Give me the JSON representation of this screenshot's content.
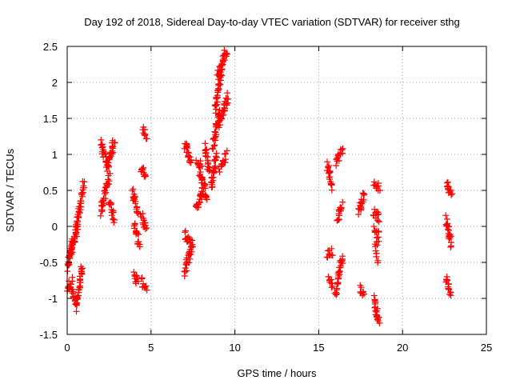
{
  "chart_data": {
    "type": "scatter",
    "title": "Day 192 of 2018, Sidereal Day-to-day VTEC variation (SDTVAR) for receiver sthg",
    "xlabel": "GPS time / hours",
    "ylabel": "SDTVAR / TECUs",
    "xlim": [
      0,
      25
    ],
    "ylim": [
      -1.5,
      2.5
    ],
    "xticks": [
      0,
      5,
      10,
      15,
      20,
      25
    ],
    "yticks": [
      -1.5,
      -1,
      -0.5,
      0,
      0.5,
      1,
      1.5,
      2,
      2.5
    ],
    "xtick_labels": [
      "0",
      "5",
      "10",
      "15",
      "20",
      "25"
    ],
    "ytick_labels": [
      "-1.5",
      "-1",
      "-0.5",
      "0",
      "0.5",
      "1",
      "1.5",
      "2",
      "2.5"
    ],
    "grid": true,
    "marker": "+",
    "color": "#ff0000",
    "segments": [
      {
        "x0": 0.0,
        "x1": 0.3,
        "y0": -0.6,
        "y1": -0.2
      },
      {
        "x0": 0.0,
        "x1": 0.3,
        "y0": -0.85,
        "y1": -0.75
      },
      {
        "x0": 0.3,
        "x1": 0.6,
        "y0": -0.9,
        "y1": -1.15
      },
      {
        "x0": 0.6,
        "x1": 0.9,
        "y0": -1.05,
        "y1": -0.55
      },
      {
        "x0": 0.2,
        "x1": 0.6,
        "y0": -0.4,
        "y1": 0.0
      },
      {
        "x0": 0.5,
        "x1": 1.0,
        "y0": -0.1,
        "y1": 0.6
      },
      {
        "x0": 2.0,
        "x1": 2.4,
        "y0": 1.15,
        "y1": 0.85
      },
      {
        "x0": 2.0,
        "x1": 2.5,
        "y0": 0.2,
        "y1": 0.7
      },
      {
        "x0": 2.4,
        "x1": 2.8,
        "y0": 0.8,
        "y1": 1.2
      },
      {
        "x0": 2.5,
        "x1": 2.8,
        "y0": 0.35,
        "y1": 0.1
      },
      {
        "x0": 3.9,
        "x1": 4.2,
        "y0": 0.5,
        "y1": 0.2
      },
      {
        "x0": 4.0,
        "x1": 4.3,
        "y0": 0.0,
        "y1": -0.25
      },
      {
        "x0": 4.0,
        "x1": 4.2,
        "y0": -0.65,
        "y1": -0.8
      },
      {
        "x0": 4.4,
        "x1": 4.7,
        "y0": 0.15,
        "y1": -0.05
      },
      {
        "x0": 4.4,
        "x1": 4.7,
        "y0": 0.8,
        "y1": 0.7
      },
      {
        "x0": 4.5,
        "x1": 4.7,
        "y0": 1.35,
        "y1": 1.25
      },
      {
        "x0": 4.4,
        "x1": 4.7,
        "y0": -0.75,
        "y1": -0.85
      },
      {
        "x0": 7.0,
        "x1": 7.4,
        "y0": 1.15,
        "y1": 0.9
      },
      {
        "x0": 7.0,
        "x1": 7.4,
        "y0": -0.65,
        "y1": -0.3
      },
      {
        "x0": 7.0,
        "x1": 7.5,
        "y0": -0.1,
        "y1": -0.25
      },
      {
        "x0": 7.7,
        "x1": 8.0,
        "y0": 0.9,
        "y1": 0.85
      },
      {
        "x0": 7.7,
        "x1": 8.1,
        "y0": 0.25,
        "y1": 0.5
      },
      {
        "x0": 7.9,
        "x1": 8.3,
        "y0": 0.8,
        "y1": 0.4
      },
      {
        "x0": 8.2,
        "x1": 8.5,
        "y0": 1.1,
        "y1": 0.75
      },
      {
        "x0": 8.6,
        "x1": 8.9,
        "y0": 0.55,
        "y1": 1.0
      },
      {
        "x0": 8.7,
        "x1": 9.1,
        "y0": 1.1,
        "y1": 1.6
      },
      {
        "x0": 8.8,
        "x1": 9.2,
        "y0": 1.6,
        "y1": 2.2
      },
      {
        "x0": 9.0,
        "x1": 9.5,
        "y0": 2.1,
        "y1": 2.45
      },
      {
        "x0": 9.0,
        "x1": 9.6,
        "y0": 1.4,
        "y1": 1.8
      },
      {
        "x0": 9.1,
        "x1": 9.5,
        "y0": 0.8,
        "y1": 1.0
      },
      {
        "x0": 15.5,
        "x1": 15.8,
        "y0": 0.85,
        "y1": 0.55
      },
      {
        "x0": 15.5,
        "x1": 15.8,
        "y0": -0.4,
        "y1": -0.35
      },
      {
        "x0": 15.6,
        "x1": 15.8,
        "y0": -0.7,
        "y1": -0.8
      },
      {
        "x0": 16.0,
        "x1": 16.4,
        "y0": 0.9,
        "y1": 1.05
      },
      {
        "x0": 16.1,
        "x1": 16.4,
        "y0": 0.1,
        "y1": 0.3
      },
      {
        "x0": 16.0,
        "x1": 16.4,
        "y0": -0.95,
        "y1": -0.4
      },
      {
        "x0": 17.4,
        "x1": 17.7,
        "y0": 0.2,
        "y1": 0.45
      },
      {
        "x0": 17.5,
        "x1": 17.7,
        "y0": -0.85,
        "y1": -0.95
      },
      {
        "x0": 18.3,
        "x1": 18.6,
        "y0": 0.6,
        "y1": 0.55
      },
      {
        "x0": 18.3,
        "x1": 18.6,
        "y0": 0.2,
        "y1": 0.1
      },
      {
        "x0": 18.3,
        "x1": 18.6,
        "y0": -0.05,
        "y1": -0.15
      },
      {
        "x0": 18.4,
        "x1": 18.5,
        "y0": -0.25,
        "y1": -0.45
      },
      {
        "x0": 18.3,
        "x1": 18.6,
        "y0": -1.0,
        "y1": -1.35
      },
      {
        "x0": 22.6,
        "x1": 22.9,
        "y0": 0.6,
        "y1": 0.45
      },
      {
        "x0": 22.6,
        "x1": 22.9,
        "y0": 0.1,
        "y1": -0.25
      },
      {
        "x0": 22.6,
        "x1": 22.9,
        "y0": -0.7,
        "y1": -0.95
      }
    ]
  }
}
